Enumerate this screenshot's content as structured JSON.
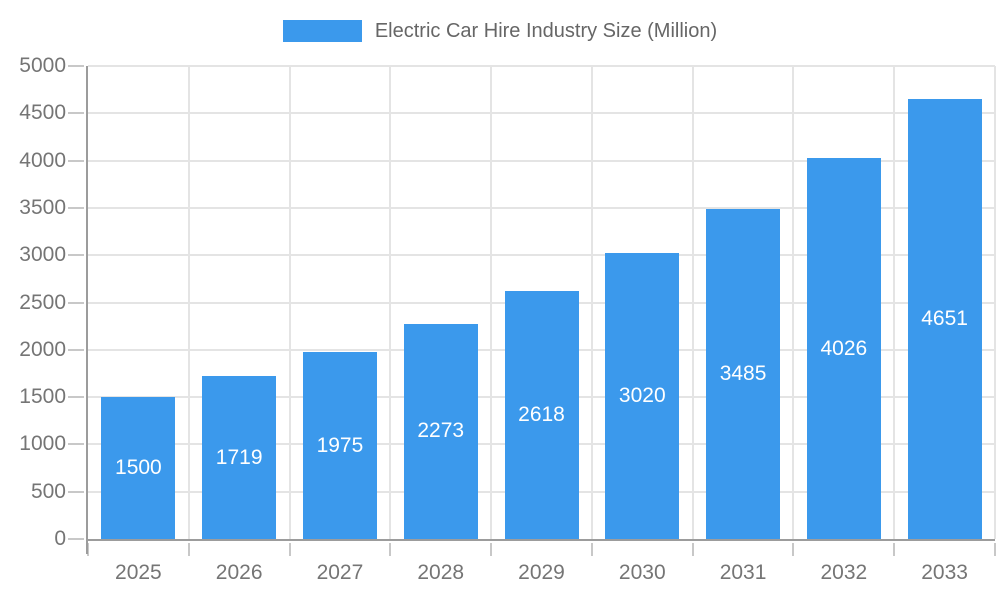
{
  "legend": {
    "label": "Electric Car Hire Industry Size (Million)"
  },
  "chart_data": {
    "type": "bar",
    "title": "Electric Car Hire Industry Size (Million)",
    "categories": [
      "2025",
      "2026",
      "2027",
      "2028",
      "2029",
      "2030",
      "2031",
      "2032",
      "2033"
    ],
    "values": [
      1500,
      1719,
      1975,
      2273,
      2618,
      3020,
      3485,
      4026,
      4651
    ],
    "bar_labels": [
      "1500",
      "1719",
      "1975",
      "2273",
      "2618",
      "3020",
      "3485",
      "4026",
      "4651"
    ],
    "xlabel": "",
    "ylabel": "",
    "ylim": [
      0,
      5000
    ],
    "yticks": [
      0,
      500,
      1000,
      1500,
      2000,
      2500,
      3000,
      3500,
      4000,
      4500,
      5000
    ],
    "grid": true,
    "legend_position": "top"
  },
  "colors": {
    "bar": "#3B99EC",
    "bar_label": "#FFFFFF",
    "gridline": "#E4E4E4",
    "axis_line": "#9C9C9C",
    "tick": "#C8C8C8",
    "axis_label": "#757575",
    "title": "#666666",
    "background": "#FFFFFF"
  }
}
